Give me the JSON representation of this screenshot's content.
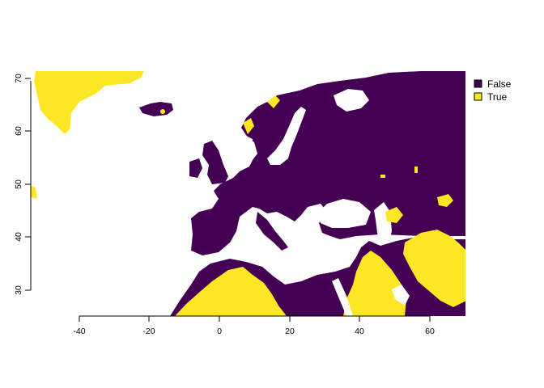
{
  "map": {
    "type": "raster",
    "colors": {
      "false": "#440154",
      "true": "#FDE725",
      "background": "#FFFFFF"
    },
    "x_range": [
      -55,
      70
    ],
    "y_range": [
      25,
      72
    ],
    "x_ticks": [
      -40,
      -20,
      0,
      20,
      40,
      60
    ],
    "y_ticks": [
      30,
      40,
      50,
      60,
      70
    ],
    "legend": {
      "placement": "right",
      "entries": [
        {
          "label": "False",
          "color": "#440154"
        },
        {
          "label": "True",
          "color": "#FDE725"
        }
      ]
    }
  }
}
